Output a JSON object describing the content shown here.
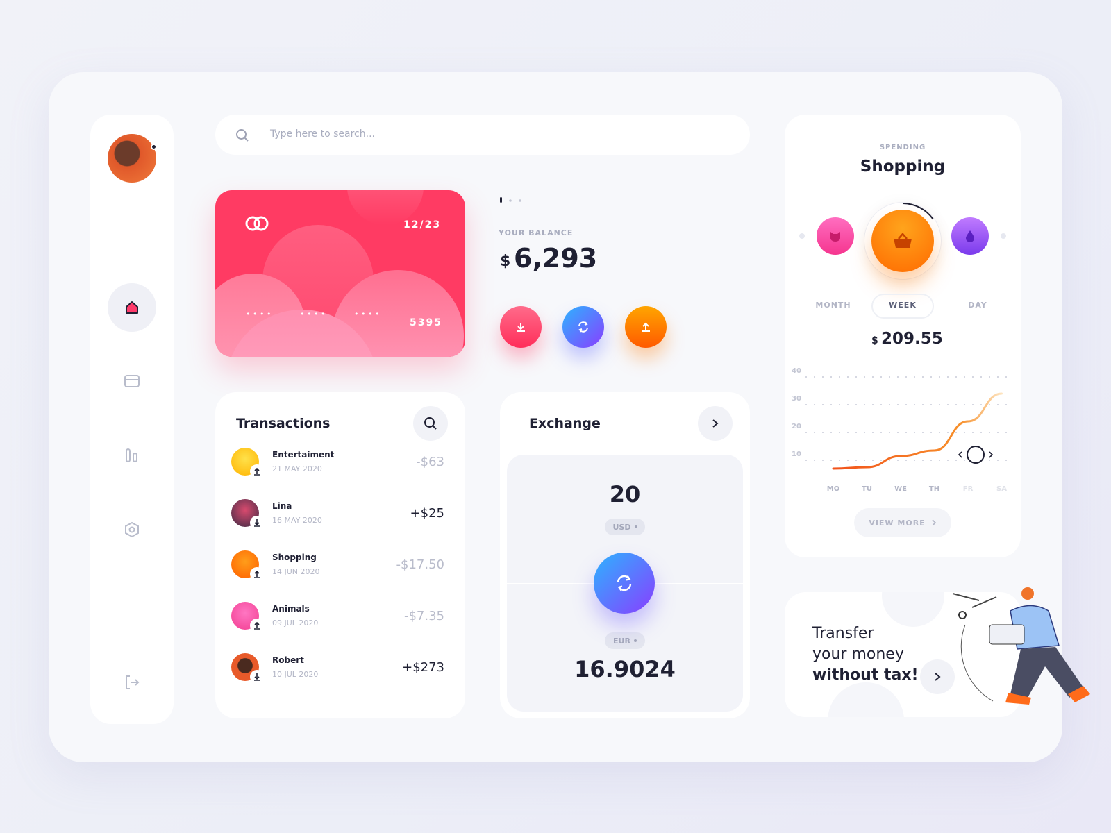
{
  "search": {
    "placeholder": "Type here to search..."
  },
  "card": {
    "expiry": "12/23",
    "masked_groups": [
      "• • • •",
      "• • • •",
      "• • • •"
    ],
    "last_digits": "5395"
  },
  "balance": {
    "label": "YOUR BALANCE",
    "currency": "$",
    "amount": "6,293"
  },
  "transactions": {
    "title": "Transactions",
    "items": [
      {
        "name": "Entertaiment",
        "date": "21 MAY 2020",
        "amount": "-$63"
      },
      {
        "name": "Lina",
        "date": "16 MAY 2020",
        "amount": "+$25"
      },
      {
        "name": "Shopping",
        "date": "14 JUN 2020",
        "amount": "-$17.50"
      },
      {
        "name": "Animals",
        "date": "09 JUL 2020",
        "amount": "-$7.35"
      },
      {
        "name": "Robert",
        "date": "10 JUL 2020",
        "amount": "+$273"
      }
    ]
  },
  "exchange": {
    "title": "Exchange",
    "from_amount": "20",
    "from_currency": "USD",
    "to_currency": "EUR",
    "to_amount": "16.9024"
  },
  "spending": {
    "label": "SPENDING",
    "category": "Shopping",
    "periods": [
      "MONTH",
      "WEEK",
      "DAY"
    ],
    "currency": "$",
    "amount": "209.55",
    "chart": {
      "type": "line",
      "categories": [
        "MO",
        "TU",
        "WE",
        "TH",
        "FR",
        "SA"
      ],
      "values": [
        7,
        7.5,
        11.5,
        13.5,
        24,
        34
      ],
      "ylim": [
        5,
        40
      ],
      "yticks": [
        10,
        20,
        30,
        40
      ],
      "color": "#f26a1b"
    },
    "button": "VIEW MORE"
  },
  "promo": {
    "lines": [
      "Transfer",
      "your money"
    ],
    "emphasis": "without tax!"
  }
}
